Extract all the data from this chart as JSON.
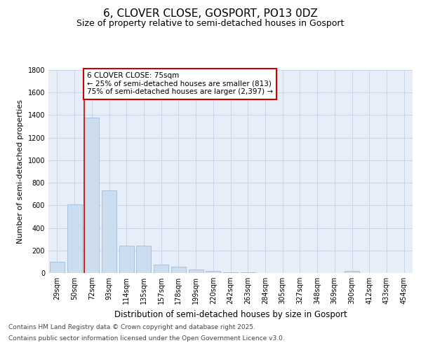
{
  "title": "6, CLOVER CLOSE, GOSPORT, PO13 0DZ",
  "subtitle": "Size of property relative to semi-detached houses in Gosport",
  "xlabel": "Distribution of semi-detached houses by size in Gosport",
  "ylabel": "Number of semi-detached properties",
  "categories": [
    "29sqm",
    "50sqm",
    "72sqm",
    "93sqm",
    "114sqm",
    "135sqm",
    "157sqm",
    "178sqm",
    "199sqm",
    "220sqm",
    "242sqm",
    "263sqm",
    "284sqm",
    "305sqm",
    "327sqm",
    "348sqm",
    "369sqm",
    "390sqm",
    "412sqm",
    "433sqm",
    "454sqm"
  ],
  "values": [
    100,
    610,
    1380,
    730,
    245,
    240,
    75,
    55,
    30,
    20,
    5,
    5,
    2,
    0,
    0,
    0,
    0,
    20,
    0,
    0,
    0
  ],
  "bar_color": "#ccddf0",
  "bar_edgecolor": "#a0bedd",
  "grid_color": "#c8d4e8",
  "background_color": "#e8eef8",
  "vline_color": "#cc0000",
  "annotation_text": "6 CLOVER CLOSE: 75sqm\n← 25% of semi-detached houses are smaller (813)\n75% of semi-detached houses are larger (2,397) →",
  "annotation_box_facecolor": "white",
  "annotation_box_edgecolor": "#cc0000",
  "ylim": [
    0,
    1800
  ],
  "yticks": [
    0,
    200,
    400,
    600,
    800,
    1000,
    1200,
    1400,
    1600,
    1800
  ],
  "vline_index": 2.0,
  "footer_line1": "Contains HM Land Registry data © Crown copyright and database right 2025.",
  "footer_line2": "Contains public sector information licensed under the Open Government Licence v3.0.",
  "title_fontsize": 11,
  "subtitle_fontsize": 9,
  "tick_fontsize": 7,
  "ylabel_fontsize": 8,
  "xlabel_fontsize": 8.5,
  "annotation_fontsize": 7.5,
  "footer_fontsize": 6.5
}
